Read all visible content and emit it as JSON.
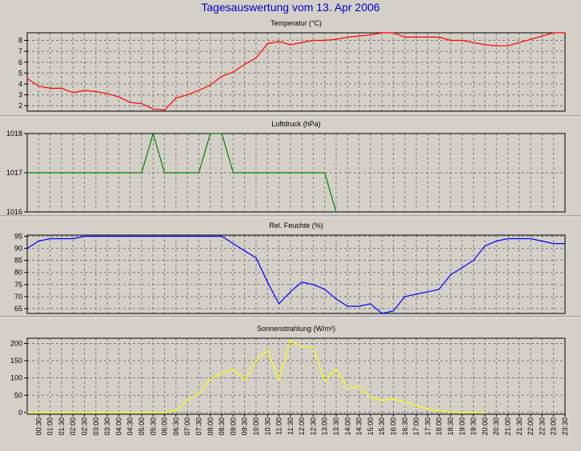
{
  "title": "Tagesauswertung vom 13. Apr 2006",
  "chart_data": {
    "type": "line",
    "x_ticks": [
      "00:30",
      "01:00",
      "01:30",
      "02:00",
      "02:30",
      "03:00",
      "03:30",
      "04:00",
      "04:30",
      "05:00",
      "05:30",
      "06:00",
      "06:30",
      "07:00",
      "07:30",
      "08:00",
      "08:30",
      "09:00",
      "09:30",
      "10:00",
      "10:30",
      "11:00",
      "11:30",
      "12:00",
      "12:30",
      "13:00",
      "13:30",
      "14:00",
      "14:30",
      "15:00",
      "15:30",
      "16:00",
      "16:30",
      "17:00",
      "17:30",
      "18:00",
      "18:30",
      "19:00",
      "19:30",
      "20:00",
      "20:30",
      "21:00",
      "21:30",
      "22:00",
      "22:30",
      "23:00",
      "23:30"
    ],
    "x_range": [
      "00:00",
      "23:30"
    ],
    "grid": true,
    "panels": [
      {
        "title": "Temperatur (°C)",
        "ylim": [
          1.5,
          8.7
        ],
        "yticks": [
          2,
          3,
          4,
          5,
          6,
          7,
          8
        ],
        "color": "#ff0000",
        "x": [
          "00:00",
          "00:30",
          "01:00",
          "01:30",
          "02:00",
          "02:30",
          "03:00",
          "03:30",
          "04:00",
          "04:30",
          "05:00",
          "05:30",
          "06:00",
          "06:30",
          "07:00",
          "07:30",
          "08:00",
          "08:30",
          "09:00",
          "09:30",
          "10:00",
          "10:30",
          "11:00",
          "11:30",
          "12:00",
          "12:30",
          "13:00",
          "13:30",
          "14:00",
          "14:30",
          "15:00",
          "15:30",
          "16:00",
          "16:30",
          "17:00",
          "17:30",
          "18:00",
          "18:30",
          "19:00",
          "19:30",
          "20:00",
          "20:30",
          "21:00",
          "21:30",
          "22:00",
          "22:30",
          "23:00",
          "23:30"
        ],
        "values": [
          4.5,
          3.8,
          3.6,
          3.6,
          3.2,
          3.4,
          3.3,
          3.1,
          2.8,
          2.3,
          2.2,
          1.7,
          1.6,
          2.7,
          3.0,
          3.4,
          3.9,
          4.7,
          5.1,
          5.8,
          6.4,
          7.7,
          7.9,
          7.6,
          7.8,
          8.0,
          8.0,
          8.1,
          8.3,
          8.4,
          8.5,
          8.7,
          8.7,
          8.3,
          8.3,
          8.3,
          8.3,
          8.0,
          8.0,
          7.8,
          7.6,
          7.5,
          7.5,
          7.8,
          8.1,
          8.4,
          8.7,
          8.7
        ]
      },
      {
        "title": "Luftdruck (hPa)",
        "ylim": [
          1016,
          1018
        ],
        "yticks": [
          1016,
          1017,
          1018
        ],
        "color": "#008000",
        "x": [
          "00:00",
          "05:00",
          "05:30",
          "06:00",
          "07:30",
          "08:00",
          "08:30",
          "09:00",
          "13:00",
          "13:30"
        ],
        "values": [
          1017,
          1017,
          1018,
          1017,
          1017,
          1018,
          1018,
          1017,
          1017,
          1016
        ]
      },
      {
        "title": "Rel. Feuchte (%)",
        "ylim": [
          63,
          95.5
        ],
        "yticks": [
          65,
          70,
          75,
          80,
          85,
          90,
          95
        ],
        "color": "#0000ff",
        "x": [
          "00:00",
          "00:30",
          "01:00",
          "01:30",
          "02:00",
          "02:30",
          "03:00",
          "08:00",
          "08:30",
          "09:00",
          "09:30",
          "10:00",
          "10:30",
          "11:00",
          "11:30",
          "12:00",
          "12:30",
          "13:00",
          "13:30",
          "14:00",
          "14:30",
          "15:00",
          "15:30",
          "16:00",
          "16:30",
          "17:00",
          "17:30",
          "18:00",
          "18:30",
          "19:00",
          "19:30",
          "20:00",
          "20:30",
          "21:00",
          "21:30",
          "22:00",
          "22:30",
          "23:00",
          "23:30"
        ],
        "values": [
          90,
          93,
          94,
          94,
          94,
          95,
          95,
          95,
          95,
          92,
          89,
          86,
          76,
          67,
          72,
          76,
          75,
          73,
          69,
          66,
          66,
          67,
          63,
          64,
          70,
          71,
          72,
          73,
          79,
          82,
          85,
          91,
          93,
          94,
          94,
          94,
          93,
          92,
          92
        ]
      },
      {
        "title": "Sonnenstrahlung (W/m²)",
        "ylim": [
          -5,
          215
        ],
        "yticks": [
          0,
          50,
          100,
          150,
          200
        ],
        "color": "#ffff00",
        "x": [
          "00:00",
          "05:30",
          "06:00",
          "06:30",
          "07:00",
          "07:30",
          "08:00",
          "08:30",
          "09:00",
          "09:30",
          "10:00",
          "10:30",
          "11:00",
          "11:30",
          "12:00",
          "12:30",
          "13:00",
          "13:30",
          "14:00",
          "14:30",
          "15:00",
          "15:30",
          "16:00",
          "16:30",
          "17:00",
          "17:30",
          "18:00",
          "18:30",
          "19:00",
          "19:30",
          "20:00"
        ],
        "values": [
          0,
          0,
          0,
          5,
          35,
          55,
          95,
          115,
          125,
          95,
          150,
          180,
          95,
          210,
          190,
          190,
          90,
          125,
          70,
          75,
          45,
          35,
          40,
          30,
          20,
          10,
          5,
          2,
          0,
          0,
          0
        ]
      }
    ]
  }
}
